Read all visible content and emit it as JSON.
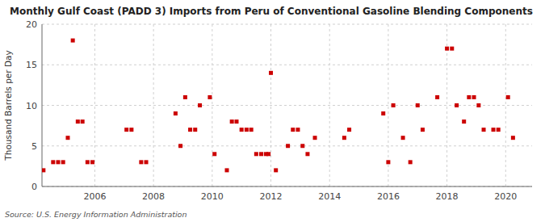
{
  "chart_data": {
    "type": "scatter",
    "title": "Monthly Gulf Coast (PADD 3) Imports from Peru of Conventional Gasoline Blending Components",
    "y_label": "Thousand Barrels per Day",
    "annotations": [
      "Source: U.S. Energy Information Administration"
    ],
    "x": [
      2004.25,
      2004.58,
      2004.75,
      2004.92,
      2005.08,
      2005.25,
      2005.42,
      2005.58,
      2005.75,
      2005.92,
      2007.08,
      2007.25,
      2007.58,
      2007.75,
      2008.75,
      2008.92,
      2009.08,
      2009.25,
      2009.42,
      2009.58,
      2009.92,
      2010.08,
      2010.5,
      2010.67,
      2010.83,
      2011.0,
      2011.17,
      2011.33,
      2011.5,
      2011.67,
      2011.83,
      2011.92,
      2012.0,
      2012.17,
      2012.58,
      2012.75,
      2012.92,
      2013.08,
      2013.25,
      2013.5,
      2014.5,
      2014.67,
      2015.83,
      2016.0,
      2016.17,
      2016.5,
      2016.75,
      2017.0,
      2017.17,
      2017.67,
      2018.0,
      2018.17,
      2018.33,
      2018.58,
      2018.75,
      2018.92,
      2019.08,
      2019.25,
      2019.58,
      2019.75,
      2020.08,
      2020.25
    ],
    "values": [
      2,
      3,
      3,
      3,
      6,
      18,
      8,
      8,
      3,
      3,
      7,
      7,
      3,
      3,
      9,
      5,
      11,
      7,
      7,
      10,
      11,
      4,
      2,
      8,
      8,
      7,
      7,
      7,
      4,
      4,
      4,
      4,
      14,
      2,
      5,
      7,
      7,
      5,
      4,
      6,
      6,
      7,
      9,
      3,
      10,
      6,
      3,
      10,
      7,
      11,
      17,
      17,
      10,
      8,
      11,
      11,
      10,
      7,
      7,
      7,
      11,
      6
    ],
    "color": "#cc0000",
    "marker": "square",
    "xlim": [
      2004.2,
      2020.9
    ],
    "xticks": [
      2006,
      2008,
      2010,
      2012,
      2014,
      2016,
      2018,
      2020
    ],
    "ylim": [
      0,
      20
    ],
    "yticks": [
      0,
      5,
      10,
      15,
      20
    ],
    "grid": true
  }
}
